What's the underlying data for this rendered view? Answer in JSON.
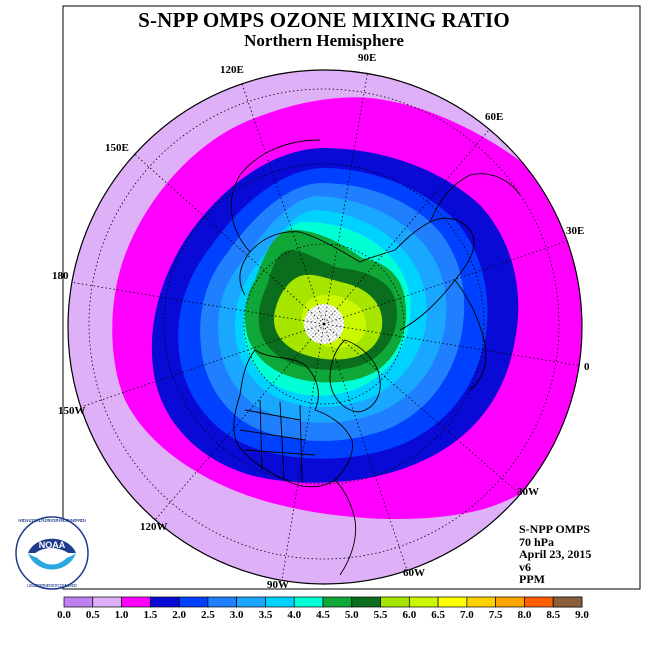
{
  "header": {
    "title": "S-NPP OMPS OZONE MIXING RATIO",
    "subtitle": "Northern Hemisphere"
  },
  "map": {
    "projection": "north polar stereographic",
    "longitude_labels": [
      {
        "name": "lon-90e",
        "text": "90E"
      },
      {
        "name": "lon-60e",
        "text": "60E"
      },
      {
        "name": "lon-30e",
        "text": "30E"
      },
      {
        "name": "lon-0",
        "text": "0"
      },
      {
        "name": "lon-30w",
        "text": "30W"
      },
      {
        "name": "lon-60w",
        "text": "60W"
      },
      {
        "name": "lon-90w",
        "text": "90W"
      },
      {
        "name": "lon-120w",
        "text": "120W"
      },
      {
        "name": "lon-150w",
        "text": "150W"
      },
      {
        "name": "lon-180",
        "text": "180"
      },
      {
        "name": "lon-150e",
        "text": "150E"
      },
      {
        "name": "lon-120e",
        "text": "120E"
      }
    ],
    "polar_data_gap": "white stippled"
  },
  "info": {
    "instrument": "S-NPP OMPS",
    "level": "70 hPa",
    "date": "April 23, 2015",
    "version": "v6",
    "units": "PPM"
  },
  "logo": {
    "text": "NOAA",
    "ring_text": "NATIONAL OCEANIC AND ATMOSPHERIC ADMINISTRATION",
    "ring_text_bottom": "U.S. DEPARTMENT OF COMMERCE"
  },
  "colorbar": {
    "labels": [
      "0.0",
      "0.5",
      "1.0",
      "1.5",
      "2.0",
      "2.5",
      "3.0",
      "3.5",
      "4.0",
      "4.5",
      "5.0",
      "5.5",
      "6.0",
      "6.5",
      "7.0",
      "7.5",
      "8.0",
      "8.5",
      "9.0"
    ],
    "colors": [
      "#bf80f2",
      "#deb0f8",
      "#ff00ff",
      "#0a0ad6",
      "#0040ff",
      "#1f7fff",
      "#1aa7ff",
      "#00d2ff",
      "#00ffd4",
      "#0fa838",
      "#0a6e1e",
      "#a5e500",
      "#caf800",
      "#ffff00",
      "#ffd100",
      "#ffa500",
      "#ff5e00",
      "#ff0000",
      "#8b5f3c"
    ]
  }
}
